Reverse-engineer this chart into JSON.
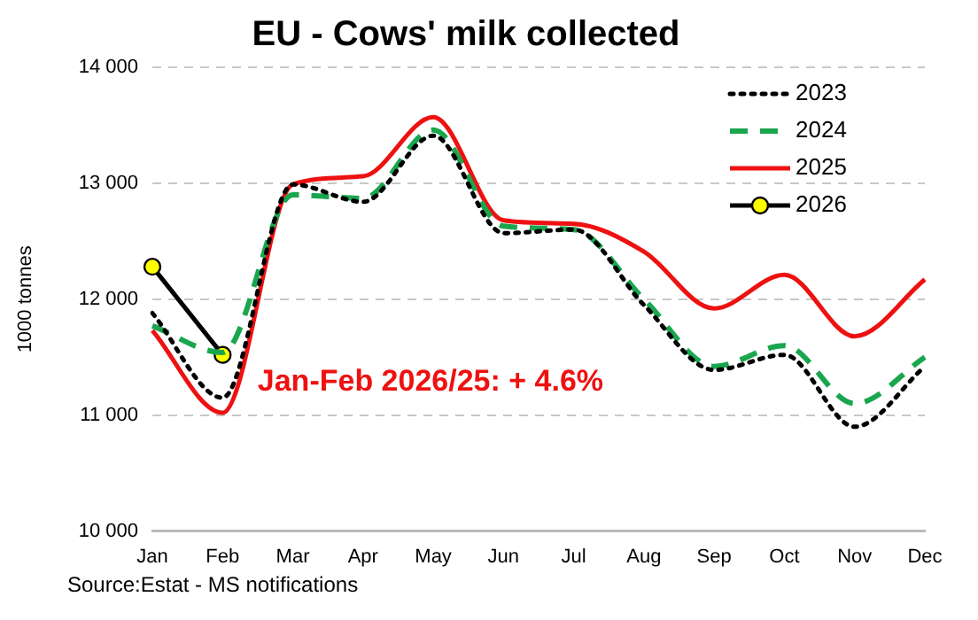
{
  "chart_data": {
    "type": "line",
    "title": "EU - Cows' milk collected",
    "ylabel": "1000 tonnes",
    "categories": [
      "Jan",
      "Feb",
      "Mar",
      "Apr",
      "May",
      "Jun",
      "Jul",
      "Aug",
      "Sep",
      "Oct",
      "Nov",
      "Dec"
    ],
    "ylim": [
      10000,
      14000
    ],
    "yticks": [
      {
        "value": 10000,
        "label": "10 000"
      },
      {
        "value": 11000,
        "label": "11 000"
      },
      {
        "value": 12000,
        "label": "12 000"
      },
      {
        "value": 13000,
        "label": "13 000"
      },
      {
        "value": 14000,
        "label": "14 000"
      }
    ],
    "grid": "y",
    "legend": "top right",
    "series": [
      {
        "name": "2023",
        "color": "#000000",
        "line_style": "dotted",
        "marker": "none",
        "values": [
          11880,
          11150,
          12990,
          12840,
          13410,
          12570,
          12600,
          11950,
          11390,
          11520,
          10900,
          11420
        ]
      },
      {
        "name": "2024",
        "color": "#1aa64e",
        "line_style": "dashed",
        "marker": "none",
        "values": [
          11770,
          11540,
          12900,
          12870,
          13460,
          12630,
          12600,
          12000,
          11420,
          11600,
          11100,
          11500
        ]
      },
      {
        "name": "2025",
        "color": "#ee1111",
        "line_style": "solid",
        "marker": "none",
        "values": [
          11730,
          11020,
          12990,
          13060,
          13570,
          12680,
          12650,
          12410,
          11920,
          12210,
          11680,
          12170
        ]
      },
      {
        "name": "2026",
        "color": "#000000",
        "line_style": "solid",
        "marker": "circle",
        "values": [
          12280,
          11520,
          null,
          null,
          null,
          null,
          null,
          null,
          null,
          null,
          null,
          null
        ]
      }
    ],
    "annotations": [
      "Jan-Feb 2026/25: + 4.6%",
      "Source:Estat - MS notifications"
    ]
  }
}
